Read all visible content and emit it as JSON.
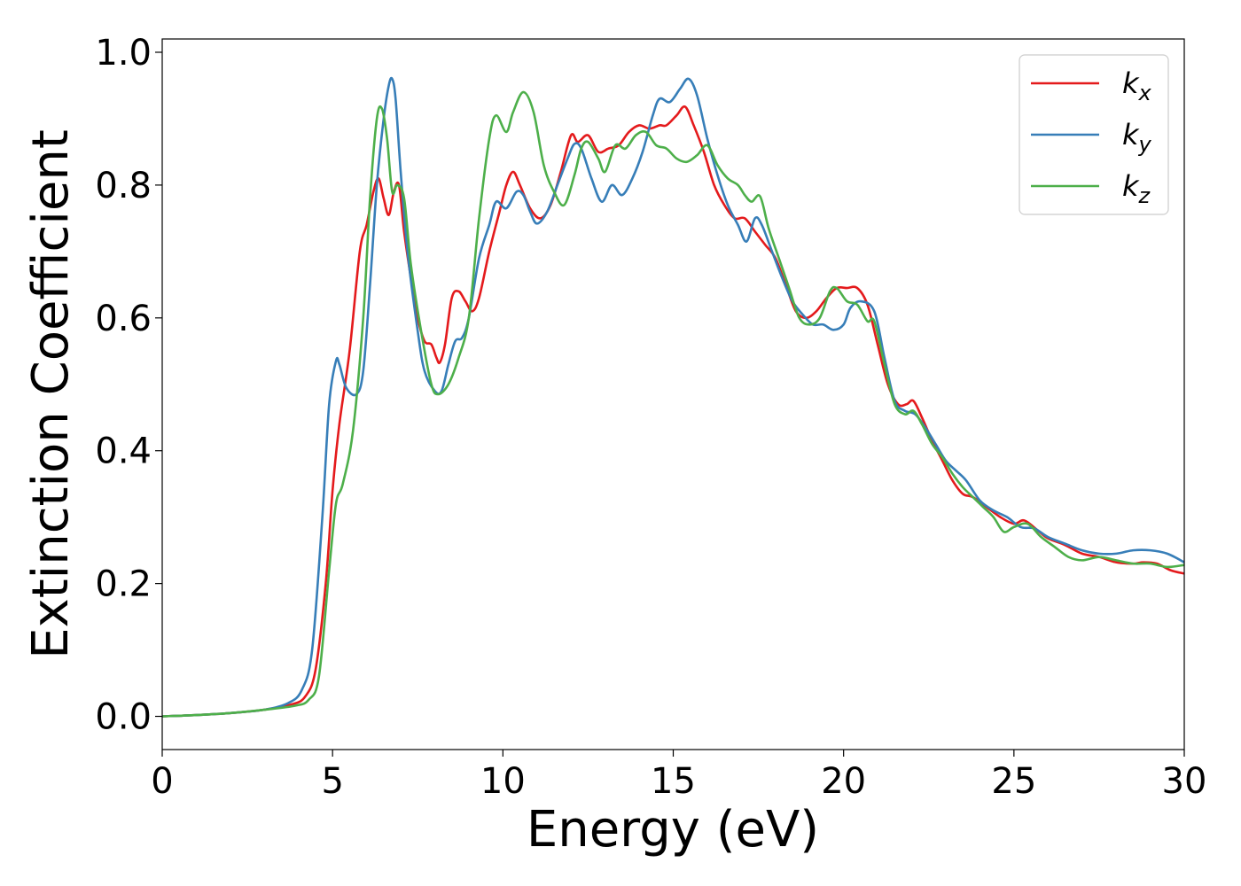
{
  "chart_data": {
    "type": "line",
    "xlabel": "Energy (eV)",
    "ylabel": "Extinction Coefficient",
    "xlim": [
      0,
      30
    ],
    "ylim": [
      -0.05,
      1.02
    ],
    "xticks": [
      0,
      5,
      10,
      15,
      20,
      25,
      30
    ],
    "xtick_labels": [
      "0",
      "5",
      "10",
      "15",
      "20",
      "25",
      "30"
    ],
    "yticks": [
      0.0,
      0.2,
      0.4,
      0.6,
      0.8,
      1.0
    ],
    "ytick_labels": [
      "0.0",
      "0.2",
      "0.4",
      "0.6",
      "0.8",
      "1.0"
    ],
    "grid": false,
    "legend_position": "top-right",
    "series": [
      {
        "name": "k",
        "subscript": "x",
        "color": "#e41a1c",
        "points": [
          [
            0,
            0.0
          ],
          [
            1,
            0.002
          ],
          [
            2,
            0.005
          ],
          [
            3,
            0.01
          ],
          [
            3.8,
            0.018
          ],
          [
            4.2,
            0.03
          ],
          [
            4.5,
            0.07
          ],
          [
            4.8,
            0.2
          ],
          [
            5.0,
            0.34
          ],
          [
            5.2,
            0.44
          ],
          [
            5.5,
            0.55
          ],
          [
            5.8,
            0.7
          ],
          [
            6.0,
            0.74
          ],
          [
            6.2,
            0.79
          ],
          [
            6.35,
            0.81
          ],
          [
            6.5,
            0.78
          ],
          [
            6.65,
            0.755
          ],
          [
            6.8,
            0.79
          ],
          [
            6.95,
            0.8
          ],
          [
            7.1,
            0.73
          ],
          [
            7.3,
            0.66
          ],
          [
            7.5,
            0.6
          ],
          [
            7.7,
            0.565
          ],
          [
            7.9,
            0.56
          ],
          [
            8.05,
            0.54
          ],
          [
            8.15,
            0.533
          ],
          [
            8.3,
            0.56
          ],
          [
            8.5,
            0.63
          ],
          [
            8.7,
            0.64
          ],
          [
            8.9,
            0.625
          ],
          [
            9.1,
            0.61
          ],
          [
            9.3,
            0.63
          ],
          [
            9.6,
            0.7
          ],
          [
            9.9,
            0.76
          ],
          [
            10.1,
            0.8
          ],
          [
            10.3,
            0.82
          ],
          [
            10.5,
            0.8
          ],
          [
            10.8,
            0.765
          ],
          [
            11.1,
            0.75
          ],
          [
            11.4,
            0.77
          ],
          [
            11.7,
            0.82
          ],
          [
            12.0,
            0.875
          ],
          [
            12.2,
            0.865
          ],
          [
            12.5,
            0.875
          ],
          [
            12.8,
            0.85
          ],
          [
            13.1,
            0.855
          ],
          [
            13.4,
            0.86
          ],
          [
            13.7,
            0.88
          ],
          [
            14.0,
            0.89
          ],
          [
            14.3,
            0.885
          ],
          [
            14.6,
            0.89
          ],
          [
            14.8,
            0.89
          ],
          [
            15.1,
            0.905
          ],
          [
            15.35,
            0.918
          ],
          [
            15.6,
            0.89
          ],
          [
            15.9,
            0.85
          ],
          [
            16.2,
            0.8
          ],
          [
            16.5,
            0.77
          ],
          [
            16.8,
            0.75
          ],
          [
            17.1,
            0.75
          ],
          [
            17.4,
            0.73
          ],
          [
            17.7,
            0.71
          ],
          [
            18.0,
            0.69
          ],
          [
            18.3,
            0.65
          ],
          [
            18.6,
            0.61
          ],
          [
            18.9,
            0.6
          ],
          [
            19.2,
            0.61
          ],
          [
            19.5,
            0.63
          ],
          [
            19.8,
            0.645
          ],
          [
            20.1,
            0.645
          ],
          [
            20.4,
            0.645
          ],
          [
            20.7,
            0.62
          ],
          [
            21.0,
            0.56
          ],
          [
            21.3,
            0.5
          ],
          [
            21.6,
            0.47
          ],
          [
            21.85,
            0.47
          ],
          [
            22.05,
            0.475
          ],
          [
            22.3,
            0.45
          ],
          [
            22.6,
            0.415
          ],
          [
            22.9,
            0.385
          ],
          [
            23.2,
            0.355
          ],
          [
            23.5,
            0.335
          ],
          [
            23.8,
            0.33
          ],
          [
            24.2,
            0.315
          ],
          [
            24.6,
            0.3
          ],
          [
            25.0,
            0.29
          ],
          [
            25.3,
            0.295
          ],
          [
            25.7,
            0.28
          ],
          [
            26.0,
            0.268
          ],
          [
            26.5,
            0.258
          ],
          [
            27.0,
            0.245
          ],
          [
            27.5,
            0.24
          ],
          [
            28.0,
            0.232
          ],
          [
            28.5,
            0.23
          ],
          [
            28.8,
            0.232
          ],
          [
            29.2,
            0.23
          ],
          [
            29.6,
            0.22
          ],
          [
            30.0,
            0.215
          ]
        ]
      },
      {
        "name": "k",
        "subscript": "y",
        "color": "#377eb8",
        "points": [
          [
            0,
            0.0
          ],
          [
            1,
            0.002
          ],
          [
            2,
            0.005
          ],
          [
            3,
            0.01
          ],
          [
            3.7,
            0.02
          ],
          [
            4.1,
            0.04
          ],
          [
            4.4,
            0.1
          ],
          [
            4.7,
            0.3
          ],
          [
            4.9,
            0.47
          ],
          [
            5.1,
            0.535
          ],
          [
            5.2,
            0.53
          ],
          [
            5.4,
            0.495
          ],
          [
            5.7,
            0.485
          ],
          [
            5.9,
            0.52
          ],
          [
            6.1,
            0.65
          ],
          [
            6.3,
            0.8
          ],
          [
            6.5,
            0.9
          ],
          [
            6.65,
            0.95
          ],
          [
            6.75,
            0.96
          ],
          [
            6.85,
            0.93
          ],
          [
            7.0,
            0.82
          ],
          [
            7.2,
            0.7
          ],
          [
            7.5,
            0.58
          ],
          [
            7.7,
            0.52
          ],
          [
            8.0,
            0.49
          ],
          [
            8.2,
            0.49
          ],
          [
            8.4,
            0.53
          ],
          [
            8.6,
            0.565
          ],
          [
            8.8,
            0.57
          ],
          [
            9.0,
            0.6
          ],
          [
            9.3,
            0.69
          ],
          [
            9.6,
            0.74
          ],
          [
            9.8,
            0.775
          ],
          [
            10.1,
            0.765
          ],
          [
            10.4,
            0.79
          ],
          [
            10.6,
            0.785
          ],
          [
            10.8,
            0.76
          ],
          [
            11.0,
            0.742
          ],
          [
            11.3,
            0.76
          ],
          [
            11.6,
            0.8
          ],
          [
            11.9,
            0.84
          ],
          [
            12.1,
            0.862
          ],
          [
            12.3,
            0.855
          ],
          [
            12.6,
            0.81
          ],
          [
            12.9,
            0.775
          ],
          [
            13.2,
            0.8
          ],
          [
            13.5,
            0.785
          ],
          [
            13.8,
            0.81
          ],
          [
            14.1,
            0.85
          ],
          [
            14.4,
            0.905
          ],
          [
            14.6,
            0.93
          ],
          [
            14.9,
            0.925
          ],
          [
            15.2,
            0.945
          ],
          [
            15.45,
            0.96
          ],
          [
            15.7,
            0.935
          ],
          [
            16.0,
            0.87
          ],
          [
            16.3,
            0.815
          ],
          [
            16.6,
            0.77
          ],
          [
            16.9,
            0.74
          ],
          [
            17.15,
            0.715
          ],
          [
            17.4,
            0.75
          ],
          [
            17.6,
            0.74
          ],
          [
            17.9,
            0.7
          ],
          [
            18.2,
            0.66
          ],
          [
            18.5,
            0.625
          ],
          [
            18.8,
            0.605
          ],
          [
            19.1,
            0.59
          ],
          [
            19.4,
            0.59
          ],
          [
            19.7,
            0.582
          ],
          [
            20.0,
            0.59
          ],
          [
            20.2,
            0.615
          ],
          [
            20.5,
            0.625
          ],
          [
            20.9,
            0.61
          ],
          [
            21.2,
            0.54
          ],
          [
            21.5,
            0.475
          ],
          [
            21.8,
            0.46
          ],
          [
            22.1,
            0.455
          ],
          [
            22.4,
            0.435
          ],
          [
            22.7,
            0.41
          ],
          [
            23.0,
            0.385
          ],
          [
            23.3,
            0.37
          ],
          [
            23.6,
            0.355
          ],
          [
            24.0,
            0.325
          ],
          [
            24.4,
            0.31
          ],
          [
            24.8,
            0.3
          ],
          [
            25.2,
            0.285
          ],
          [
            25.6,
            0.283
          ],
          [
            26.0,
            0.27
          ],
          [
            26.5,
            0.26
          ],
          [
            27.0,
            0.25
          ],
          [
            27.5,
            0.245
          ],
          [
            28.0,
            0.245
          ],
          [
            28.5,
            0.25
          ],
          [
            29.0,
            0.25
          ],
          [
            29.5,
            0.245
          ],
          [
            30.0,
            0.232
          ]
        ]
      },
      {
        "name": "k",
        "subscript": "z",
        "color": "#4daf4a",
        "points": [
          [
            0,
            0.0
          ],
          [
            1,
            0.002
          ],
          [
            2,
            0.005
          ],
          [
            3,
            0.01
          ],
          [
            3.9,
            0.016
          ],
          [
            4.3,
            0.025
          ],
          [
            4.6,
            0.06
          ],
          [
            4.9,
            0.22
          ],
          [
            5.1,
            0.32
          ],
          [
            5.3,
            0.35
          ],
          [
            5.6,
            0.43
          ],
          [
            5.9,
            0.6
          ],
          [
            6.1,
            0.78
          ],
          [
            6.3,
            0.9
          ],
          [
            6.45,
            0.915
          ],
          [
            6.6,
            0.87
          ],
          [
            6.75,
            0.79
          ],
          [
            6.9,
            0.8
          ],
          [
            7.1,
            0.78
          ],
          [
            7.3,
            0.68
          ],
          [
            7.6,
            0.58
          ],
          [
            7.9,
            0.5
          ],
          [
            8.1,
            0.485
          ],
          [
            8.4,
            0.5
          ],
          [
            8.7,
            0.54
          ],
          [
            9.0,
            0.6
          ],
          [
            9.3,
            0.75
          ],
          [
            9.6,
            0.87
          ],
          [
            9.8,
            0.905
          ],
          [
            10.1,
            0.88
          ],
          [
            10.3,
            0.91
          ],
          [
            10.6,
            0.94
          ],
          [
            10.9,
            0.91
          ],
          [
            11.2,
            0.83
          ],
          [
            11.5,
            0.79
          ],
          [
            11.8,
            0.77
          ],
          [
            12.1,
            0.815
          ],
          [
            12.3,
            0.855
          ],
          [
            12.5,
            0.865
          ],
          [
            12.8,
            0.84
          ],
          [
            13.0,
            0.82
          ],
          [
            13.3,
            0.86
          ],
          [
            13.6,
            0.855
          ],
          [
            13.9,
            0.875
          ],
          [
            14.2,
            0.88
          ],
          [
            14.5,
            0.86
          ],
          [
            14.8,
            0.855
          ],
          [
            15.1,
            0.84
          ],
          [
            15.4,
            0.835
          ],
          [
            15.7,
            0.845
          ],
          [
            16.0,
            0.86
          ],
          [
            16.3,
            0.83
          ],
          [
            16.6,
            0.81
          ],
          [
            16.9,
            0.8
          ],
          [
            17.1,
            0.785
          ],
          [
            17.3,
            0.775
          ],
          [
            17.55,
            0.783
          ],
          [
            17.8,
            0.735
          ],
          [
            18.1,
            0.69
          ],
          [
            18.4,
            0.645
          ],
          [
            18.7,
            0.6
          ],
          [
            19.0,
            0.59
          ],
          [
            19.3,
            0.6
          ],
          [
            19.6,
            0.64
          ],
          [
            19.8,
            0.645
          ],
          [
            20.1,
            0.625
          ],
          [
            20.4,
            0.62
          ],
          [
            20.7,
            0.595
          ],
          [
            20.9,
            0.595
          ],
          [
            21.2,
            0.53
          ],
          [
            21.5,
            0.47
          ],
          [
            21.8,
            0.455
          ],
          [
            22.05,
            0.46
          ],
          [
            22.3,
            0.44
          ],
          [
            22.6,
            0.41
          ],
          [
            22.9,
            0.39
          ],
          [
            23.2,
            0.365
          ],
          [
            23.5,
            0.345
          ],
          [
            23.8,
            0.33
          ],
          [
            24.1,
            0.315
          ],
          [
            24.4,
            0.3
          ],
          [
            24.7,
            0.278
          ],
          [
            25.0,
            0.285
          ],
          [
            25.4,
            0.29
          ],
          [
            25.8,
            0.27
          ],
          [
            26.2,
            0.255
          ],
          [
            26.6,
            0.24
          ],
          [
            27.0,
            0.235
          ],
          [
            27.5,
            0.24
          ],
          [
            28.0,
            0.235
          ],
          [
            28.5,
            0.23
          ],
          [
            29.0,
            0.23
          ],
          [
            29.5,
            0.225
          ],
          [
            30.0,
            0.228
          ]
        ]
      }
    ]
  }
}
